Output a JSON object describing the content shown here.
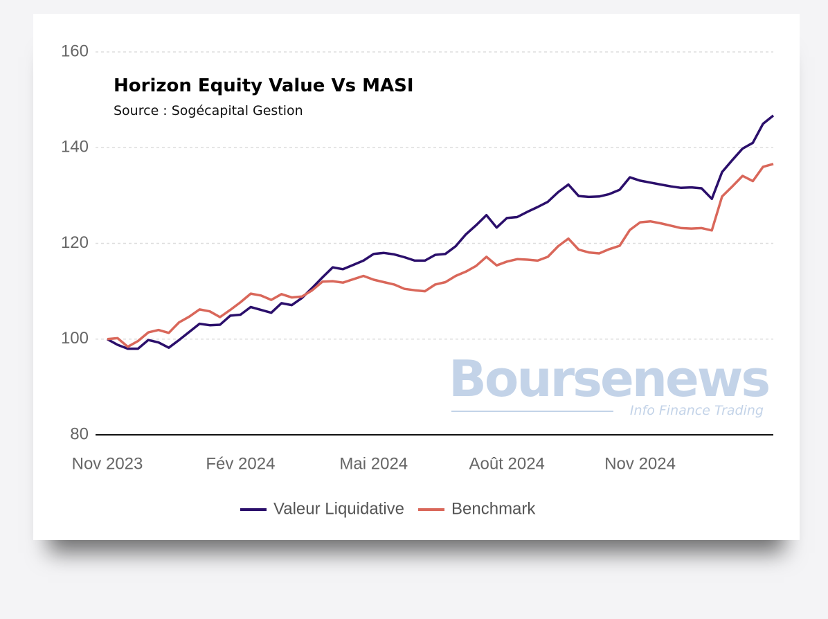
{
  "chart_data": {
    "type": "line",
    "title": "Horizon Equity Value Vs MASI",
    "subtitle": "Source : Sogécapital Gestion",
    "watermark": "Boursenews",
    "watermark_tagline": "Info Finance Trading",
    "categories": [
      "Nov 2023",
      null,
      null,
      null,
      null,
      null,
      null,
      null,
      null,
      null,
      null,
      null,
      null,
      "Fév 2024",
      null,
      null,
      null,
      null,
      null,
      null,
      null,
      null,
      null,
      null,
      null,
      null,
      "Mai 2024",
      null,
      null,
      null,
      null,
      null,
      null,
      null,
      null,
      null,
      null,
      null,
      null,
      "Août 2024",
      null,
      null,
      null,
      null,
      null,
      null,
      null,
      null,
      null,
      null,
      null,
      null,
      "Nov 2024",
      null,
      null,
      null,
      null,
      null,
      null,
      null,
      null,
      null,
      null,
      null,
      null,
      null
    ],
    "series": [
      {
        "name": "Valeur Liquidative",
        "color": "#2b0f6b",
        "values": [
          100,
          98.8,
          98,
          98,
          99.8,
          99.3,
          98.2,
          99.8,
          101.5,
          103.2,
          102.9,
          103,
          104.9,
          105.1,
          106.7,
          106.1,
          105.5,
          107.5,
          107.1,
          108.6,
          110.7,
          112.9,
          115,
          114.6,
          115.5,
          116.4,
          117.8,
          118,
          117.7,
          117.1,
          116.4,
          116.4,
          117.6,
          117.8,
          119.4,
          121.9,
          123.8,
          125.9,
          123.3,
          125.3,
          125.5,
          126.6,
          127.6,
          128.7,
          130.7,
          132.3,
          129.9,
          129.7,
          129.8,
          130.3,
          131.2,
          133.8,
          133.1,
          132.7,
          132.3,
          131.9,
          131.6,
          131.7,
          131.5,
          129.3,
          134.9,
          137.4,
          139.8,
          141,
          145,
          146.7
        ]
      },
      {
        "name": "Benchmark",
        "color": "#d9675a",
        "values": [
          100,
          100.2,
          98.4,
          99.6,
          101.4,
          101.9,
          101.3,
          103.5,
          104.7,
          106.2,
          105.8,
          104.6,
          106.1,
          107.7,
          109.5,
          109.1,
          108.2,
          109.4,
          108.7,
          108.9,
          110.2,
          112,
          112.1,
          111.8,
          112.5,
          113.2,
          112.4,
          111.9,
          111.4,
          110.5,
          110.2,
          110,
          111.4,
          111.9,
          113.2,
          114.1,
          115.3,
          117.2,
          115.4,
          116.2,
          116.7,
          116.6,
          116.4,
          117.2,
          119.4,
          121,
          118.7,
          118.1,
          117.9,
          118.8,
          119.5,
          122.8,
          124.4,
          124.6,
          124.2,
          123.7,
          123.2,
          123.1,
          123.2,
          122.7,
          129.8,
          131.9,
          134.1,
          133,
          136,
          136.6
        ]
      }
    ],
    "ylim": [
      80,
      160
    ],
    "yticks": [
      80,
      100,
      120,
      140,
      160
    ],
    "grid": true,
    "legend": "bottom"
  }
}
